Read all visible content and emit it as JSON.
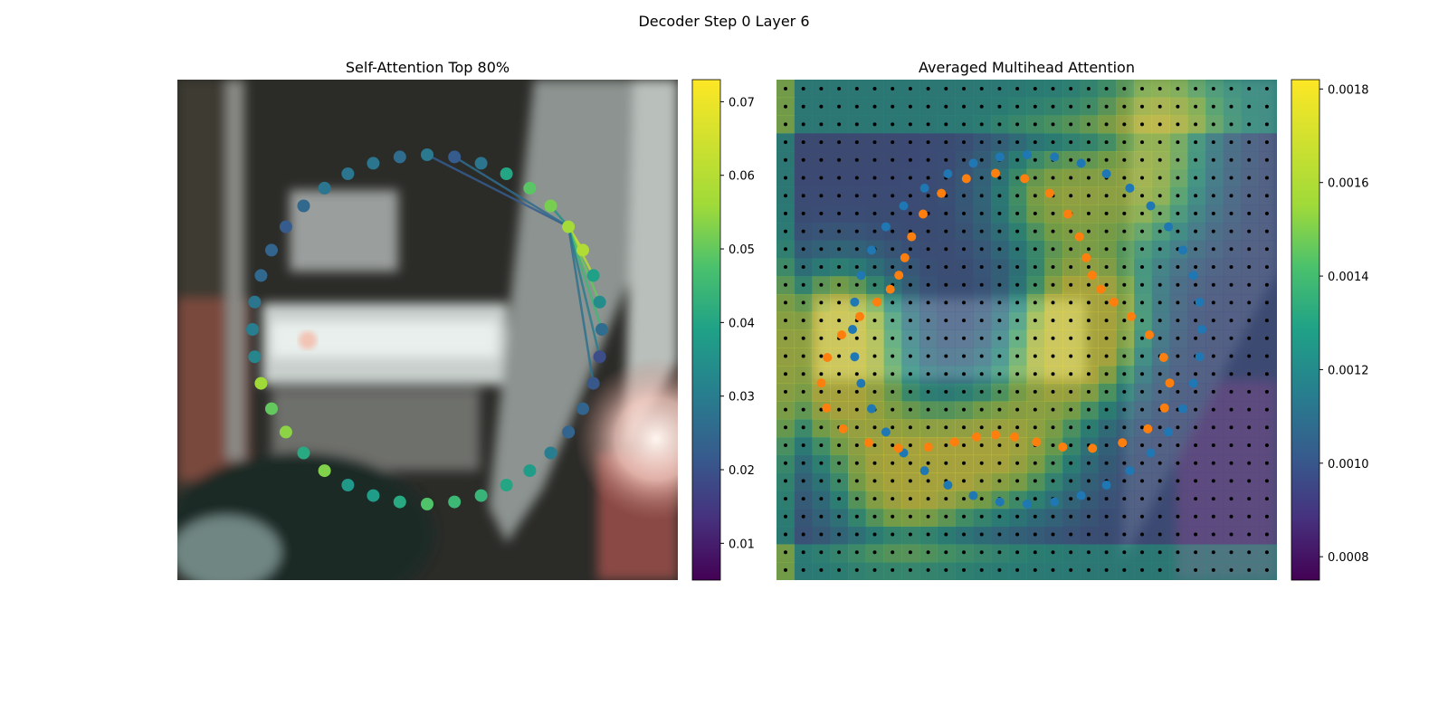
{
  "figure": {
    "title": "Decoder Step 0 Layer 6"
  },
  "panels": [
    {
      "title": "Self-Attention Top 80%"
    },
    {
      "title": "Averaged Multihead Attention"
    }
  ],
  "colors": {
    "polygon_a": "#1f77b4",
    "polygon_b": "#ff7f0e",
    "grid_points": "#000000",
    "colormap": "viridis"
  },
  "chart_data": [
    {
      "type": "scatter",
      "title": "Self-Attention Top 80%",
      "description_free": true,
      "points": {
        "n": 40,
        "values": [
          0.029,
          0.022,
          0.028,
          0.04,
          0.049,
          0.052,
          0.057,
          0.059,
          0.039,
          0.034,
          0.026,
          0.019,
          0.021,
          0.024,
          0.024,
          0.03,
          0.038,
          0.04,
          0.044,
          0.045,
          0.048,
          0.041,
          0.038,
          0.037,
          0.053,
          0.041,
          0.054,
          0.05,
          0.056,
          0.032,
          0.03,
          0.028,
          0.025,
          0.024,
          0.022,
          0.025,
          0.028,
          0.028,
          0.028,
          0.026
        ]
      },
      "colorbar": {
        "ticks": [
          "0.01",
          "0.02",
          "0.03",
          "0.04",
          "0.05",
          "0.06",
          "0.07"
        ],
        "vmin": 0.005,
        "vmax": 0.073
      }
    },
    {
      "type": "heatmap",
      "title": "Averaged Multihead Attention",
      "grid": {
        "rows": 28,
        "cols": 28
      },
      "series": [
        {
          "color": "#1f77b4",
          "count": 40
        },
        {
          "color": "#ff7f0e",
          "count": 40
        }
      ],
      "colorbar": {
        "ticks": [
          "0.0008",
          "0.0010",
          "0.0012",
          "0.0014",
          "0.0016",
          "0.0018"
        ],
        "vmin": 0.00075,
        "vmax": 0.00182
      }
    }
  ]
}
